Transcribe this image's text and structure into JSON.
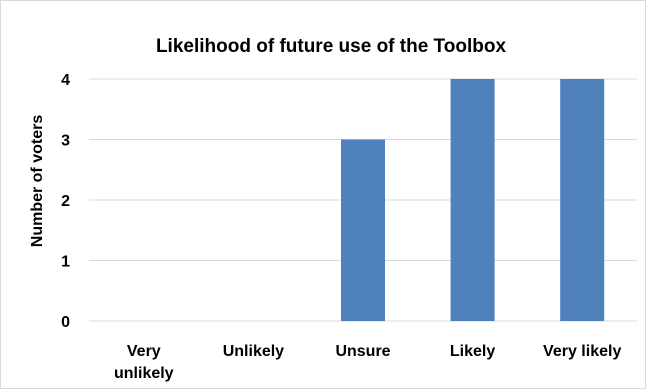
{
  "chart_data": {
    "type": "bar",
    "title": "Likelihood of future use of the Toolbox",
    "xlabel": "",
    "ylabel": "Number of voters",
    "categories": [
      "Very unlikely",
      "Unlikely",
      "Unsure",
      "Likely",
      "Very likely"
    ],
    "category_lines": [
      [
        "Very",
        "unlikely"
      ],
      [
        "Unlikely"
      ],
      [
        "Unsure"
      ],
      [
        "Likely"
      ],
      [
        "Very likely"
      ]
    ],
    "values": [
      0,
      0,
      3,
      4,
      4
    ],
    "ylim": [
      0,
      4
    ],
    "yticks": [
      "0",
      "1",
      "2",
      "3",
      "4"
    ],
    "grid": true,
    "legend": "none",
    "colors": {
      "bar": "#4f81bd",
      "grid": "#d9d9d9",
      "frame": "#d9d9d9"
    }
  }
}
